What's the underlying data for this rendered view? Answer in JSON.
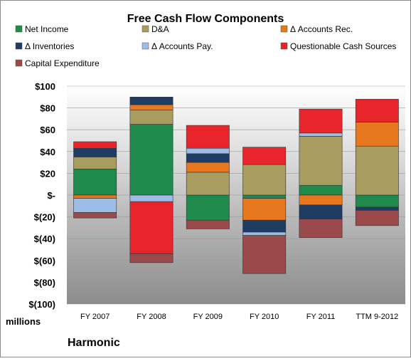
{
  "chart_data": {
    "type": "bar",
    "stacked": true,
    "title": "Free Cash Flow Components",
    "company": "Harmonic",
    "unit_label": "millions",
    "categories": [
      "FY 2007",
      "FY 2008",
      "FY 2009",
      "FY 2010",
      "FY 2011",
      "TTM 9-2012"
    ],
    "ylim": [
      -100,
      100
    ],
    "yticks": [
      100,
      80,
      60,
      40,
      20,
      0,
      -20,
      -40,
      -60,
      -80,
      -100
    ],
    "ytick_labels": [
      "$100",
      "$80",
      "$60",
      "$40",
      "$20",
      "$-",
      "$(20)",
      "$(40)",
      "$(60)",
      "$(80)",
      "$(100)"
    ],
    "legend_position": "top",
    "series": [
      {
        "name": "Net Income",
        "color": "#1f8a4c",
        "values": [
          24,
          65,
          -23,
          -3,
          9,
          -11
        ]
      },
      {
        "name": "D&A",
        "color": "#a89c5e",
        "values": [
          11,
          13,
          21,
          28,
          45,
          45
        ]
      },
      {
        "name": "Δ Accounts Rec.",
        "color": "#e8781e",
        "values": [
          -3,
          5,
          9,
          -20,
          -9,
          22
        ]
      },
      {
        "name": "Δ Inventories",
        "color": "#1f3d63",
        "values": [
          8,
          7,
          8,
          -11,
          -13,
          -3
        ]
      },
      {
        "name": "Δ Accounts Pay.",
        "color": "#9dbce6",
        "values": [
          -13,
          -6,
          5,
          -3,
          3,
          0
        ]
      },
      {
        "name": "Questionable Cash Sources",
        "color": "#e8252a",
        "values": [
          6,
          -48,
          21,
          16,
          22,
          21
        ]
      },
      {
        "name": "Capital Expenditure",
        "color": "#9a4a4a",
        "values": [
          -5,
          -8,
          -8,
          -35,
          -17,
          -14
        ]
      }
    ]
  }
}
